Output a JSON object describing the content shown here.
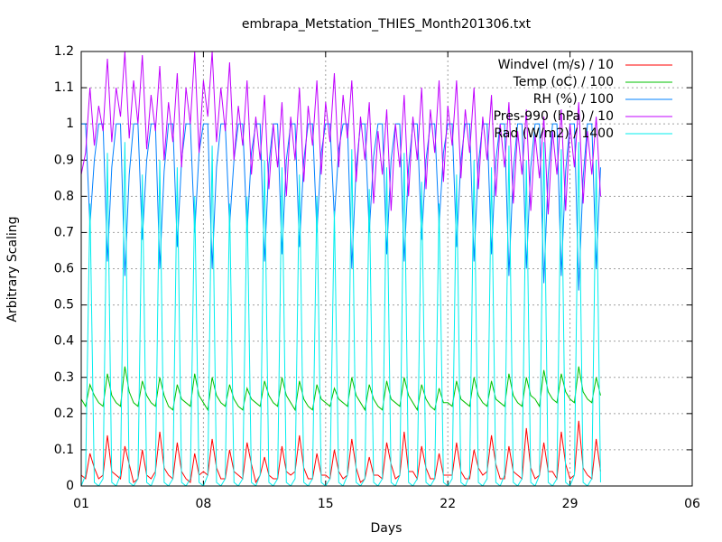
{
  "chart_data": {
    "type": "line",
    "title": "embrapa_Metstation_THIES_Month201306.txt",
    "xlabel": "Days",
    "ylabel": "Arbitrary Scaling",
    "xlim": [
      0,
      840
    ],
    "xticks": [
      {
        "value": 0,
        "label": "01"
      },
      {
        "value": 168,
        "label": "08"
      },
      {
        "value": 336,
        "label": "15"
      },
      {
        "value": 504,
        "label": "22"
      },
      {
        "value": 672,
        "label": "29"
      },
      {
        "value": 840,
        "label": "06"
      }
    ],
    "ylim": [
      0,
      1.2
    ],
    "yticks": [
      0,
      0.1,
      0.2,
      0.3,
      0.4,
      0.5,
      0.6,
      0.7,
      0.8,
      0.9,
      1,
      1.1,
      1.2
    ],
    "grid": true,
    "legend": "top-right",
    "x": [
      0,
      6,
      12,
      18,
      24,
      30,
      36,
      42,
      48,
      54,
      60,
      66,
      72,
      78,
      84,
      90,
      96,
      102,
      108,
      114,
      120,
      126,
      132,
      138,
      144,
      150,
      156,
      162,
      168,
      174,
      180,
      186,
      192,
      198,
      204,
      210,
      216,
      222,
      228,
      234,
      240,
      246,
      252,
      258,
      264,
      270,
      276,
      282,
      288,
      294,
      300,
      306,
      312,
      318,
      324,
      330,
      336,
      342,
      348,
      354,
      360,
      366,
      372,
      378,
      384,
      390,
      396,
      402,
      408,
      414,
      420,
      426,
      432,
      438,
      444,
      450,
      456,
      462,
      468,
      474,
      480,
      486,
      492,
      498,
      504,
      510,
      516,
      522,
      528,
      534,
      540,
      546,
      552,
      558,
      564,
      570,
      576,
      582,
      588,
      594,
      600,
      606,
      612,
      618,
      624,
      630,
      636,
      642,
      648,
      654,
      660,
      666,
      672,
      678,
      684,
      690,
      696,
      702,
      708,
      714
    ],
    "series": [
      {
        "name": "Windvel (m/s) / 10",
        "color": "#ff0000",
        "values": [
          0.03,
          0.02,
          0.09,
          0.05,
          0.02,
          0.03,
          0.14,
          0.04,
          0.03,
          0.02,
          0.11,
          0.06,
          0.01,
          0.02,
          0.1,
          0.03,
          0.02,
          0.04,
          0.15,
          0.05,
          0.03,
          0.02,
          0.12,
          0.04,
          0.02,
          0.01,
          0.09,
          0.03,
          0.04,
          0.03,
          0.13,
          0.05,
          0.02,
          0.02,
          0.1,
          0.04,
          0.03,
          0.02,
          0.12,
          0.06,
          0.01,
          0.03,
          0.08,
          0.03,
          0.02,
          0.02,
          0.11,
          0.04,
          0.03,
          0.04,
          0.14,
          0.05,
          0.02,
          0.02,
          0.09,
          0.03,
          0.03,
          0.02,
          0.1,
          0.04,
          0.02,
          0.03,
          0.13,
          0.05,
          0.01,
          0.02,
          0.08,
          0.03,
          0.03,
          0.02,
          0.12,
          0.06,
          0.02,
          0.03,
          0.15,
          0.04,
          0.04,
          0.02,
          0.11,
          0.05,
          0.02,
          0.02,
          0.09,
          0.03,
          0.03,
          0.03,
          0.12,
          0.04,
          0.02,
          0.02,
          0.1,
          0.05,
          0.03,
          0.04,
          0.14,
          0.06,
          0.02,
          0.02,
          0.11,
          0.04,
          0.03,
          0.02,
          0.16,
          0.05,
          0.02,
          0.03,
          0.12,
          0.04,
          0.04,
          0.02,
          0.15,
          0.06,
          0.02,
          0.03,
          0.18,
          0.05,
          0.03,
          0.02,
          0.13,
          0.04
        ]
      },
      {
        "name": "Temp (oC) / 100",
        "color": "#00c000",
        "values": [
          0.24,
          0.22,
          0.28,
          0.25,
          0.23,
          0.22,
          0.31,
          0.25,
          0.23,
          0.22,
          0.33,
          0.26,
          0.23,
          0.22,
          0.29,
          0.25,
          0.23,
          0.22,
          0.3,
          0.25,
          0.22,
          0.21,
          0.28,
          0.24,
          0.23,
          0.22,
          0.31,
          0.25,
          0.23,
          0.21,
          0.3,
          0.25,
          0.23,
          0.22,
          0.28,
          0.24,
          0.22,
          0.21,
          0.27,
          0.24,
          0.23,
          0.22,
          0.29,
          0.25,
          0.23,
          0.22,
          0.3,
          0.25,
          0.23,
          0.21,
          0.29,
          0.24,
          0.22,
          0.21,
          0.28,
          0.24,
          0.23,
          0.22,
          0.27,
          0.24,
          0.23,
          0.22,
          0.3,
          0.25,
          0.23,
          0.21,
          0.28,
          0.24,
          0.22,
          0.21,
          0.29,
          0.24,
          0.23,
          0.22,
          0.3,
          0.25,
          0.23,
          0.21,
          0.28,
          0.24,
          0.22,
          0.21,
          0.27,
          0.23,
          0.23,
          0.22,
          0.29,
          0.24,
          0.23,
          0.22,
          0.3,
          0.25,
          0.23,
          0.22,
          0.29,
          0.24,
          0.23,
          0.22,
          0.31,
          0.25,
          0.23,
          0.22,
          0.3,
          0.25,
          0.24,
          0.22,
          0.32,
          0.26,
          0.24,
          0.23,
          0.31,
          0.26,
          0.24,
          0.23,
          0.33,
          0.26,
          0.24,
          0.23,
          0.3,
          0.25
        ]
      },
      {
        "name": "RH (%) / 100",
        "color": "#0080ff",
        "values": [
          1,
          1,
          0.72,
          0.9,
          1,
          1,
          0.62,
          0.88,
          1,
          1,
          0.58,
          0.86,
          1,
          1,
          0.68,
          0.9,
          1,
          1,
          0.6,
          0.87,
          1,
          1,
          0.66,
          0.9,
          1,
          1,
          0.7,
          0.92,
          1,
          1,
          0.6,
          0.88,
          1,
          1,
          0.72,
          0.9,
          1,
          1,
          0.7,
          0.92,
          1,
          1,
          0.62,
          0.89,
          1,
          1,
          0.64,
          0.9,
          1,
          1,
          0.66,
          0.9,
          1,
          1,
          0.7,
          0.92,
          1,
          1,
          0.74,
          0.93,
          1,
          1,
          0.6,
          0.88,
          1,
          1,
          0.7,
          0.91,
          1,
          1,
          0.64,
          0.9,
          1,
          1,
          0.62,
          0.88,
          1,
          1,
          0.68,
          0.9,
          1,
          1,
          0.72,
          0.92,
          1,
          1,
          0.66,
          0.9,
          1,
          1,
          0.62,
          0.89,
          1,
          1,
          0.64,
          0.9,
          1,
          1,
          0.58,
          0.87,
          1,
          1,
          0.6,
          0.88,
          1,
          1,
          0.56,
          0.86,
          1,
          1,
          0.58,
          0.87,
          1,
          1,
          0.54,
          0.85,
          1,
          1,
          0.6,
          0.88
        ]
      },
      {
        "name": "Pres-990 (hPa) / 10",
        "color": "#c000ff",
        "values": [
          0.86,
          0.92,
          1.1,
          0.94,
          1.05,
          0.98,
          1.18,
          0.95,
          1.1,
          1.02,
          1.2,
          0.96,
          1.12,
          1.0,
          1.19,
          0.93,
          1.08,
          0.98,
          1.16,
          0.9,
          1.06,
          0.95,
          1.14,
          0.88,
          1.1,
          1.0,
          1.2,
          0.92,
          1.12,
          1.02,
          1.2,
          0.95,
          1.1,
          0.98,
          1.17,
          0.9,
          1.05,
          0.94,
          1.12,
          0.86,
          1.02,
          0.9,
          1.08,
          0.82,
          1.0,
          0.88,
          1.06,
          0.8,
          1.02,
          0.9,
          1.1,
          0.84,
          1.05,
          0.94,
          1.12,
          0.86,
          1.06,
          0.95,
          1.14,
          0.88,
          1.08,
          0.96,
          1.12,
          0.84,
          1.02,
          0.9,
          1.06,
          0.78,
          0.98,
          0.86,
          1.04,
          0.76,
          1.0,
          0.88,
          1.08,
          0.8,
          1.02,
          0.9,
          1.1,
          0.82,
          1.04,
          0.92,
          1.12,
          0.84,
          1.05,
          0.94,
          1.12,
          0.85,
          1.04,
          0.92,
          1.1,
          0.82,
          1.02,
          0.9,
          1.08,
          0.8,
          1.0,
          0.88,
          1.06,
          0.78,
          0.98,
          0.86,
          1.04,
          0.76,
          0.97,
          0.85,
          1.02,
          0.75,
          0.98,
          0.86,
          1.04,
          0.76,
          1.0,
          0.88,
          1.06,
          0.78,
          0.98,
          0.86,
          1.02,
          0.8
        ]
      },
      {
        "name": "Rad (W/m2) / 1400",
        "color": "#00eeee",
        "values": [
          0,
          0.03,
          0.78,
          0.01,
          0,
          0.02,
          0.92,
          0.01,
          0,
          0.03,
          0.95,
          0.01,
          0,
          0.02,
          0.86,
          0.01,
          0,
          0.03,
          0.9,
          0.01,
          0,
          0.02,
          0.88,
          0.01,
          0,
          0.02,
          0.8,
          0.01,
          0,
          0.03,
          0.94,
          0.01,
          0,
          0.02,
          0.78,
          0.01,
          0,
          0.02,
          0.8,
          0.01,
          0,
          0.03,
          0.9,
          0.01,
          0,
          0.02,
          0.88,
          0.01,
          0,
          0.02,
          0.86,
          0.01,
          0,
          0.02,
          0.8,
          0.01,
          0,
          0.02,
          0.76,
          0.01,
          0,
          0.03,
          0.93,
          0.01,
          0,
          0.02,
          0.82,
          0.01,
          0,
          0.02,
          0.88,
          0.01,
          0,
          0.03,
          0.92,
          0.01,
          0,
          0.02,
          0.84,
          0.01,
          0,
          0.02,
          0.78,
          0.01,
          0,
          0.02,
          0.86,
          0.01,
          0,
          0.03,
          0.9,
          0.01,
          0,
          0.02,
          0.88,
          0.01,
          0,
          0.03,
          0.94,
          0.01,
          0,
          0.02,
          0.9,
          0.01,
          0,
          0.03,
          0.95,
          0.01,
          0,
          0.02,
          0.93,
          0.01,
          0,
          0.03,
          0.95,
          0.01,
          0,
          0.02,
          0.9,
          0.01
        ]
      }
    ]
  }
}
